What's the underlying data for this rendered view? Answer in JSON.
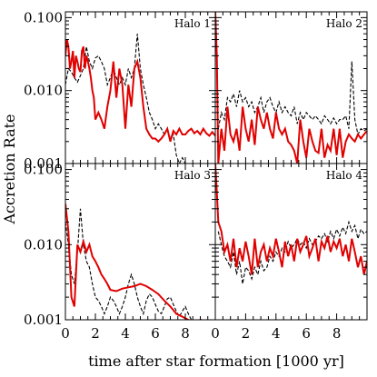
{
  "chart_data": {
    "type": "line",
    "xlabel": "time after star formation [1000 yr]",
    "ylabel": "Accretion Rate",
    "xlim": [
      0,
      10
    ],
    "ylim": [
      0.001,
      0.12
    ],
    "yscale": "log",
    "x_ticks": [
      0,
      2,
      4,
      6,
      8
    ],
    "y_ticks": [
      0.001,
      0.01,
      0.1
    ],
    "y_tick_labels": [
      "0.001",
      "0.010",
      "0.100"
    ],
    "series_styles": {
      "red": {
        "color": "#e00000",
        "style": "solid"
      },
      "black": {
        "color": "#000000",
        "style": "dashed"
      }
    },
    "panels": [
      {
        "label": "Halo 1",
        "red": {
          "x": [
            0,
            0.1,
            0.2,
            0.3,
            0.4,
            0.5,
            0.6,
            0.7,
            0.8,
            0.9,
            1.0,
            1.1,
            1.2,
            1.3,
            1.4,
            1.5,
            1.6,
            1.7,
            1.8,
            1.9,
            2.0,
            2.2,
            2.4,
            2.6,
            2.8,
            3.0,
            3.2,
            3.4,
            3.6,
            3.8,
            4.0,
            4.2,
            4.4,
            4.6,
            4.8,
            5.0,
            5.2,
            5.4,
            5.6,
            5.8,
            6.0,
            6.2,
            6.4,
            6.6,
            6.8,
            7.0,
            7.2,
            7.4,
            7.6,
            7.8,
            8.0,
            8.2,
            8.4,
            8.6,
            8.8,
            9.0,
            9.2,
            9.4,
            9.6,
            9.8,
            10.0
          ],
          "y": [
            0.03,
            0.05,
            0.04,
            0.02,
            0.025,
            0.035,
            0.015,
            0.03,
            0.025,
            0.02,
            0.018,
            0.035,
            0.04,
            0.02,
            0.03,
            0.025,
            0.02,
            0.015,
            0.01,
            0.008,
            0.004,
            0.005,
            0.004,
            0.003,
            0.006,
            0.01,
            0.025,
            0.008,
            0.02,
            0.012,
            0.003,
            0.012,
            0.006,
            0.02,
            0.025,
            0.015,
            0.006,
            0.003,
            0.0025,
            0.0022,
            0.0022,
            0.002,
            0.0022,
            0.0025,
            0.003,
            0.002,
            0.0028,
            0.0025,
            0.003,
            0.0025,
            0.0025,
            0.0028,
            0.003,
            0.0026,
            0.0028,
            0.0025,
            0.003,
            0.0026,
            0.0024,
            0.0027,
            0.0024
          ]
        },
        "black": {
          "x": [
            0,
            0.2,
            0.4,
            0.6,
            0.8,
            1.0,
            1.2,
            1.4,
            1.6,
            1.8,
            2.0,
            2.2,
            2.4,
            2.6,
            2.8,
            3.0,
            3.2,
            3.4,
            3.6,
            3.8,
            4.0,
            4.2,
            4.4,
            4.6,
            4.8,
            5.0,
            5.2,
            5.4,
            5.6,
            5.8,
            6.0,
            6.2,
            6.4,
            6.6,
            6.8,
            7.0,
            7.2,
            7.4,
            7.6,
            7.8,
            8.0
          ],
          "y": [
            0.012,
            0.02,
            0.018,
            0.015,
            0.013,
            0.016,
            0.02,
            0.04,
            0.025,
            0.02,
            0.028,
            0.03,
            0.025,
            0.02,
            0.012,
            0.015,
            0.02,
            0.015,
            0.012,
            0.015,
            0.012,
            0.02,
            0.015,
            0.02,
            0.06,
            0.02,
            0.012,
            0.008,
            0.005,
            0.004,
            0.003,
            0.0035,
            0.003,
            0.0025,
            0.003,
            0.0022,
            0.0025,
            0.0013,
            0.001,
            0.0012,
            0.001
          ]
        }
      },
      {
        "label": "Halo 2",
        "red": {
          "x": [
            0,
            0.1,
            0.2,
            0.4,
            0.6,
            0.8,
            1.0,
            1.2,
            1.4,
            1.6,
            1.8,
            2.0,
            2.2,
            2.4,
            2.6,
            2.8,
            3.0,
            3.2,
            3.4,
            3.6,
            3.8,
            4.0,
            4.2,
            4.4,
            4.6,
            4.8,
            5.0,
            5.2,
            5.4,
            5.6,
            5.8,
            6.0,
            6.2,
            6.4,
            6.6,
            6.8,
            7.0,
            7.2,
            7.4,
            7.6,
            7.8,
            8.0,
            8.2,
            8.4,
            8.6,
            8.8,
            9.0,
            9.2,
            9.4,
            9.6,
            9.8,
            10.0
          ],
          "y": [
            0.12,
            0.03,
            0.001,
            0.003,
            0.0015,
            0.006,
            0.0025,
            0.002,
            0.003,
            0.0015,
            0.006,
            0.003,
            0.002,
            0.004,
            0.0018,
            0.006,
            0.004,
            0.003,
            0.005,
            0.003,
            0.0022,
            0.005,
            0.003,
            0.0025,
            0.003,
            0.002,
            0.0018,
            0.0015,
            0.001,
            0.004,
            0.002,
            0.0012,
            0.003,
            0.002,
            0.0015,
            0.0014,
            0.003,
            0.0012,
            0.0018,
            0.0015,
            0.003,
            0.0013,
            0.003,
            0.0012,
            0.002,
            0.0025,
            0.0022,
            0.002,
            0.0025,
            0.0022,
            0.0025,
            0.0028
          ]
        },
        "black": {
          "x": [
            0.2,
            0.4,
            0.6,
            0.8,
            1.0,
            1.2,
            1.4,
            1.6,
            1.8,
            2.0,
            2.2,
            2.4,
            2.6,
            2.8,
            3.0,
            3.2,
            3.4,
            3.6,
            3.8,
            4.0,
            4.2,
            4.4,
            4.6,
            4.8,
            5.0,
            5.2,
            5.4,
            5.6,
            5.8,
            6.0,
            6.2,
            6.4,
            6.6,
            6.8,
            7.0,
            7.2,
            7.4,
            7.6,
            7.8,
            8.0,
            8.2,
            8.4,
            8.6,
            8.8,
            9.0,
            9.2,
            9.4,
            9.6,
            9.8,
            10.0
          ],
          "y": [
            0.003,
            0.005,
            0.004,
            0.008,
            0.007,
            0.009,
            0.006,
            0.01,
            0.007,
            0.008,
            0.006,
            0.007,
            0.005,
            0.006,
            0.008,
            0.005,
            0.007,
            0.008,
            0.006,
            0.005,
            0.007,
            0.005,
            0.006,
            0.005,
            0.0045,
            0.006,
            0.0035,
            0.005,
            0.004,
            0.005,
            0.0045,
            0.004,
            0.0045,
            0.004,
            0.0035,
            0.0045,
            0.004,
            0.0035,
            0.0042,
            0.0035,
            0.004,
            0.004,
            0.0045,
            0.003,
            0.025,
            0.004,
            0.0025,
            0.003,
            0.0028,
            0.003
          ]
        }
      },
      {
        "label": "Halo 3",
        "red": {
          "x": [
            0,
            0.2,
            0.4,
            0.6,
            0.8,
            1.0,
            1.2,
            1.4,
            1.6,
            1.8,
            2.0,
            2.2,
            2.4,
            2.6,
            2.8,
            3.0,
            3.4,
            3.8,
            4.2,
            4.6,
            5.0,
            5.4,
            5.8,
            6.2,
            6.6,
            7.0,
            7.4,
            7.8,
            8.2,
            8.6,
            9.0,
            9.4,
            9.8,
            10.0
          ],
          "y": [
            0.035,
            0.015,
            0.002,
            0.0015,
            0.01,
            0.008,
            0.011,
            0.008,
            0.01,
            0.007,
            0.006,
            0.005,
            0.004,
            0.0035,
            0.003,
            0.0025,
            0.0024,
            0.0026,
            0.0027,
            0.0028,
            0.003,
            0.0028,
            0.0025,
            0.0022,
            0.0018,
            0.0015,
            0.0012,
            0.0011,
            0.001,
            0.0009,
            0.001,
            0.00095,
            0.0009,
            0.0009
          ]
        },
        "black": {
          "x": [
            0,
            0.2,
            0.4,
            0.6,
            0.8,
            1.0,
            1.2,
            1.4,
            1.6,
            1.8,
            2.0,
            2.2,
            2.4,
            2.6,
            2.8,
            3.0,
            3.2,
            3.4,
            3.6,
            3.8,
            4.0,
            4.2,
            4.4,
            4.6,
            4.8,
            5.0,
            5.2,
            5.4,
            5.6,
            5.8,
            6.0,
            6.2,
            6.4,
            6.6,
            6.8,
            7.0,
            7.2,
            7.4,
            7.6,
            7.8,
            8.0,
            8.2,
            8.4
          ],
          "y": [
            0.02,
            0.01,
            0.004,
            0.003,
            0.008,
            0.03,
            0.01,
            0.006,
            0.005,
            0.003,
            0.002,
            0.0018,
            0.0015,
            0.0012,
            0.0015,
            0.002,
            0.0018,
            0.0015,
            0.0012,
            0.0015,
            0.002,
            0.003,
            0.004,
            0.003,
            0.002,
            0.0015,
            0.0012,
            0.0018,
            0.0022,
            0.002,
            0.0016,
            0.0013,
            0.0012,
            0.0015,
            0.0019,
            0.002,
            0.0016,
            0.0013,
            0.0011,
            0.0013,
            0.0015,
            0.0012,
            0.001
          ]
        }
      },
      {
        "label": "Halo 4",
        "red": {
          "x": [
            0,
            0.1,
            0.2,
            0.4,
            0.6,
            0.8,
            1.0,
            1.2,
            1.4,
            1.6,
            1.8,
            2.0,
            2.2,
            2.4,
            2.6,
            2.8,
            3.0,
            3.2,
            3.4,
            3.6,
            3.8,
            4.0,
            4.2,
            4.4,
            4.6,
            4.8,
            5.0,
            5.2,
            5.4,
            5.6,
            5.8,
            6.0,
            6.2,
            6.4,
            6.6,
            6.8,
            7.0,
            7.2,
            7.4,
            7.6,
            7.8,
            8.0,
            8.2,
            8.4,
            8.6,
            8.8,
            9.0,
            9.2,
            9.4,
            9.6,
            9.8,
            10.0
          ],
          "y": [
            0.12,
            0.05,
            0.02,
            0.015,
            0.008,
            0.01,
            0.006,
            0.012,
            0.005,
            0.009,
            0.006,
            0.011,
            0.007,
            0.004,
            0.012,
            0.005,
            0.008,
            0.01,
            0.006,
            0.009,
            0.007,
            0.012,
            0.008,
            0.005,
            0.011,
            0.007,
            0.01,
            0.006,
            0.012,
            0.008,
            0.01,
            0.013,
            0.007,
            0.009,
            0.012,
            0.006,
            0.011,
            0.009,
            0.013,
            0.008,
            0.011,
            0.009,
            0.012,
            0.007,
            0.01,
            0.006,
            0.012,
            0.008,
            0.005,
            0.007,
            0.004,
            0.006
          ]
        },
        "black": {
          "x": [
            0.2,
            0.4,
            0.6,
            0.8,
            1.0,
            1.2,
            1.4,
            1.6,
            1.8,
            2.0,
            2.2,
            2.4,
            2.6,
            2.8,
            3.0,
            3.2,
            3.4,
            3.6,
            3.8,
            4.0,
            4.2,
            4.4,
            4.6,
            4.8,
            5.0,
            5.2,
            5.4,
            5.6,
            5.8,
            6.0,
            6.2,
            6.4,
            6.6,
            6.8,
            7.0,
            7.2,
            7.4,
            7.6,
            7.8,
            8.0,
            8.2,
            8.4,
            8.6,
            8.8,
            9.0,
            9.2,
            9.4,
            9.6,
            9.8,
            10.0
          ],
          "y": [
            0.015,
            0.01,
            0.007,
            0.006,
            0.005,
            0.008,
            0.004,
            0.006,
            0.003,
            0.005,
            0.0045,
            0.0035,
            0.005,
            0.004,
            0.006,
            0.0045,
            0.005,
            0.007,
            0.006,
            0.008,
            0.007,
            0.009,
            0.008,
            0.011,
            0.009,
            0.01,
            0.012,
            0.01,
            0.011,
            0.009,
            0.012,
            0.01,
            0.011,
            0.013,
            0.012,
            0.014,
            0.011,
            0.015,
            0.012,
            0.016,
            0.013,
            0.017,
            0.014,
            0.02,
            0.015,
            0.018,
            0.012,
            0.016,
            0.014,
            0.015
          ]
        }
      }
    ]
  }
}
